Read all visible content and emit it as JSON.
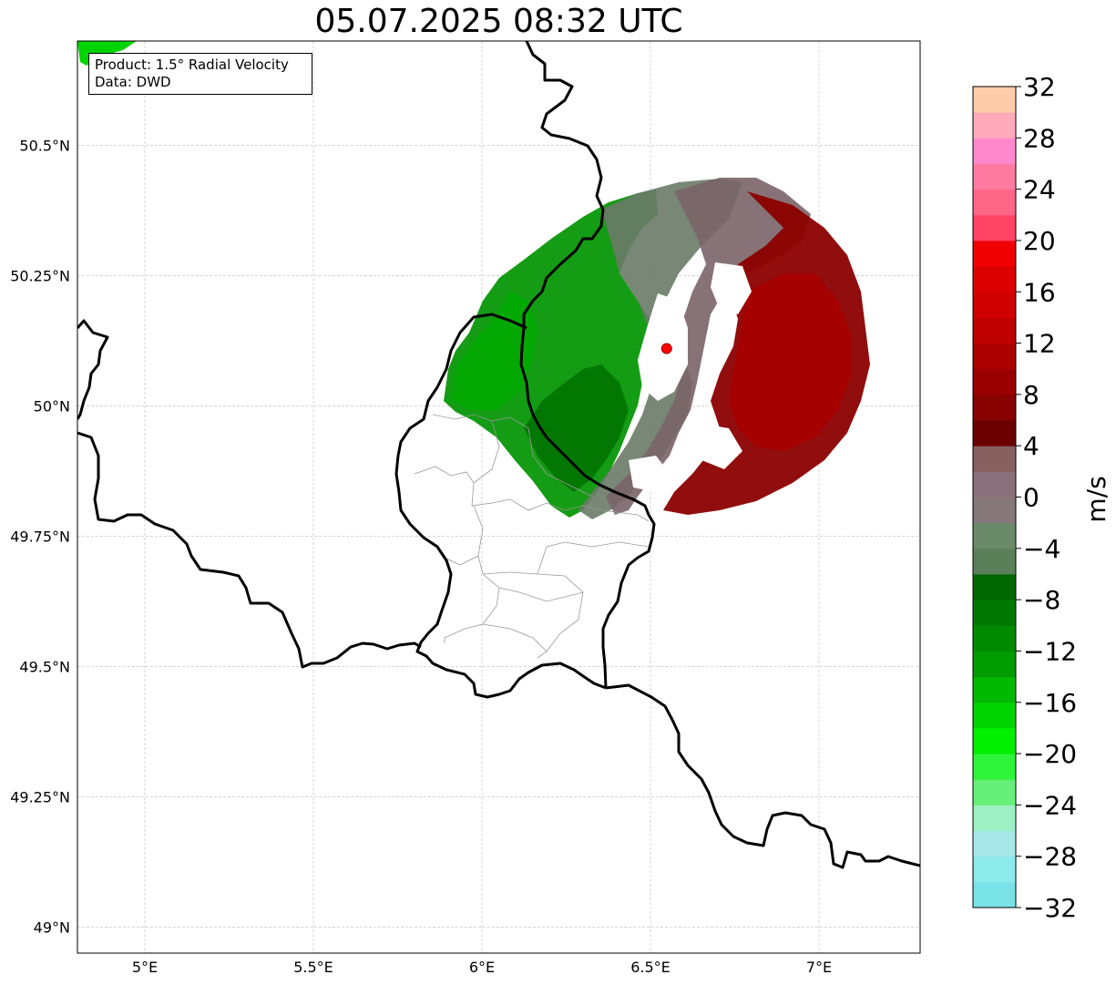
{
  "title": "05.07.2025 08:32 UTC",
  "info": {
    "product": "Product: 1.5° Radial Velocity",
    "data": "Data: DWD"
  },
  "map": {
    "lon_range": [
      4.8,
      7.3
    ],
    "lat_range": [
      48.95,
      50.7
    ],
    "x_ticks": [
      {
        "value": 5.0,
        "label": "5°E"
      },
      {
        "value": 5.5,
        "label": "5.5°E"
      },
      {
        "value": 6.0,
        "label": "6°E"
      },
      {
        "value": 6.5,
        "label": "6.5°E"
      },
      {
        "value": 7.0,
        "label": "7°E"
      }
    ],
    "y_ticks": [
      {
        "value": 50.5,
        "label": "50.5°N"
      },
      {
        "value": 50.25,
        "label": "50.25°N"
      },
      {
        "value": 50.0,
        "label": "50°N"
      },
      {
        "value": 49.75,
        "label": "49.75°N"
      },
      {
        "value": 49.5,
        "label": "49.5°N"
      },
      {
        "value": 49.25,
        "label": "49.25°N"
      },
      {
        "value": 49.0,
        "label": "49°N"
      }
    ],
    "radar_site": {
      "lon": 6.548,
      "lat": 50.11
    },
    "grid": true
  },
  "colorbar": {
    "unit": "m/s",
    "min": -32,
    "max": 32,
    "tick_labels": [
      "32",
      "28",
      "24",
      "20",
      "16",
      "12",
      "8",
      "4",
      "0",
      "−4",
      "−8",
      "−12",
      "−16",
      "−20",
      "−24",
      "−28",
      "−32"
    ],
    "colors_bottom_to_top": [
      "#79e2e6",
      "#8ceaea",
      "#a8e8e8",
      "#9cf0c4",
      "#66f07a",
      "#2ef43a",
      "#00f000",
      "#00d400",
      "#00b800",
      "#009c00",
      "#008a00",
      "#007800",
      "#006600",
      "#5a805a",
      "#6a8a6a",
      "#867878",
      "#8a707a",
      "#886060",
      "#6a0000",
      "#880000",
      "#9a0000",
      "#aa0000",
      "#be0000",
      "#d00000",
      "#dc0000",
      "#f00000",
      "#ff4466",
      "#ff6688",
      "#ff7aa0",
      "#ff88cc",
      "#ffaabb",
      "#ffccaa"
    ]
  }
}
